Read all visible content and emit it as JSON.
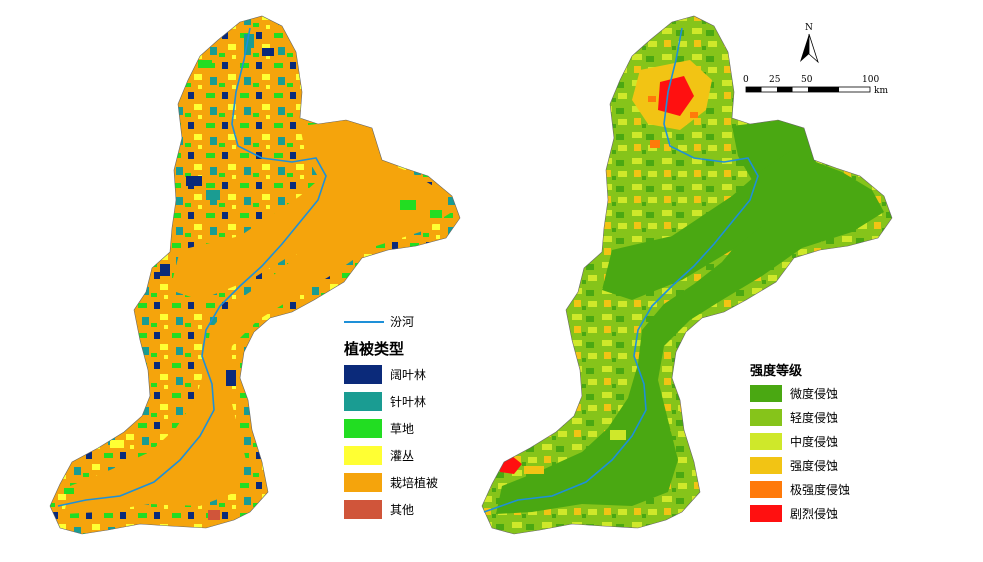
{
  "river": {
    "label": "汾河",
    "color": "#1e90d8"
  },
  "veg_legend": {
    "title": "植被类型",
    "items": [
      {
        "label": "阔叶林",
        "color": "#0b2a7a"
      },
      {
        "label": "针叶林",
        "color": "#1a9c92"
      },
      {
        "label": "草地",
        "color": "#22dd22"
      },
      {
        "label": "灌丛",
        "color": "#ffff33"
      },
      {
        "label": "栽培植被",
        "color": "#f5a40c"
      },
      {
        "label": "其他",
        "color": "#d0553a"
      }
    ]
  },
  "erosion_legend": {
    "title": "强度等级",
    "items": [
      {
        "label": "微度侵蚀",
        "color": "#4aa812"
      },
      {
        "label": "轻度侵蚀",
        "color": "#86c41a"
      },
      {
        "label": "中度侵蚀",
        "color": "#cfe82a"
      },
      {
        "label": "强度侵蚀",
        "color": "#f2c414"
      },
      {
        "label": "极强度侵蚀",
        "color": "#ff7a0a"
      },
      {
        "label": "剧烈侵蚀",
        "color": "#ff1010"
      }
    ]
  },
  "north": {
    "label": "N"
  },
  "scale": {
    "ticks": [
      "0",
      "25",
      "50",
      "100"
    ],
    "unit": "km"
  }
}
